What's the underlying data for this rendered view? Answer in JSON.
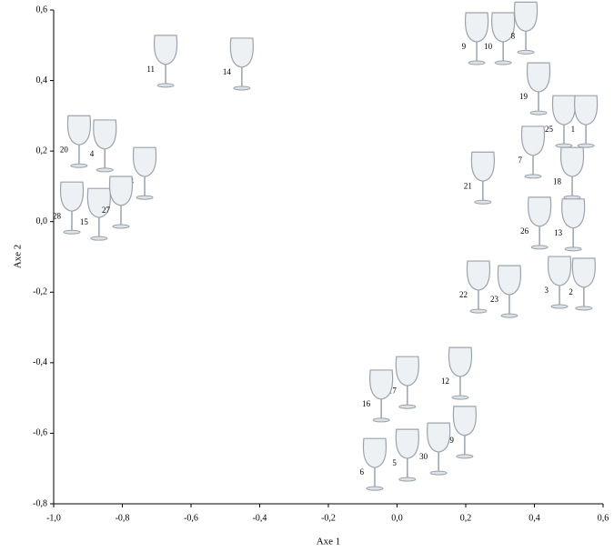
{
  "chart_data": {
    "type": "scatter",
    "x_label": "Axe 1",
    "y_label": "Axe 2",
    "point_labels": [
      "11",
      "14",
      "9",
      "10",
      "8",
      "19",
      "25",
      "1",
      "20",
      "4",
      "24",
      "7",
      "18",
      "21",
      "28",
      "15",
      "27",
      "26",
      "13",
      "22",
      "23",
      "3",
      "2",
      "12",
      "17",
      "16",
      "29",
      "30",
      "5",
      "6"
    ],
    "x": [
      -0.674,
      -0.452,
      0.232,
      0.309,
      0.375,
      0.412,
      0.486,
      0.55,
      -0.926,
      -0.851,
      -0.735,
      0.396,
      0.51,
      0.25,
      -0.947,
      -0.868,
      -0.804,
      0.415,
      0.513,
      0.237,
      0.327,
      0.473,
      0.544,
      0.184,
      0.03,
      -0.046,
      0.197,
      0.121,
      0.03,
      -0.065
    ],
    "values": [
      0.456,
      0.448,
      0.52,
      0.52,
      0.55,
      0.378,
      0.285,
      0.285,
      0.228,
      0.216,
      0.138,
      0.198,
      0.138,
      0.125,
      0.04,
      0.022,
      0.056,
      -0.003,
      -0.008,
      -0.184,
      -0.197,
      -0.171,
      -0.176,
      -0.429,
      -0.455,
      -0.493,
      -0.596,
      -0.643,
      -0.661,
      -0.687
    ],
    "color": "#9aa3ad",
    "xlim": [
      -1.0,
      0.6
    ],
    "ylim": [
      -0.8,
      0.6
    ],
    "xticks": [
      {
        "value": -1.0,
        "label": "-1,0"
      },
      {
        "value": -0.8,
        "label": "-0,8"
      },
      {
        "value": -0.6,
        "label": "-0,6"
      },
      {
        "value": -0.4,
        "label": "-0,4"
      },
      {
        "value": -0.2,
        "label": "-0,2"
      },
      {
        "value": 0.0,
        "label": "0,0"
      },
      {
        "value": 0.2,
        "label": "0,2"
      },
      {
        "value": 0.4,
        "label": "0,4"
      },
      {
        "value": 0.6,
        "label": "0,6"
      }
    ],
    "yticks": [
      {
        "value": -0.8,
        "label": "-0,8"
      },
      {
        "value": -0.6,
        "label": "-0,6"
      },
      {
        "value": -0.4,
        "label": "-0,4"
      },
      {
        "value": -0.2,
        "label": "-0,2"
      },
      {
        "value": 0.0,
        "label": "0,0"
      },
      {
        "value": 0.2,
        "label": "0,2"
      },
      {
        "value": 0.4,
        "label": "0,4"
      },
      {
        "value": 0.6,
        "label": "0,6"
      }
    ]
  }
}
